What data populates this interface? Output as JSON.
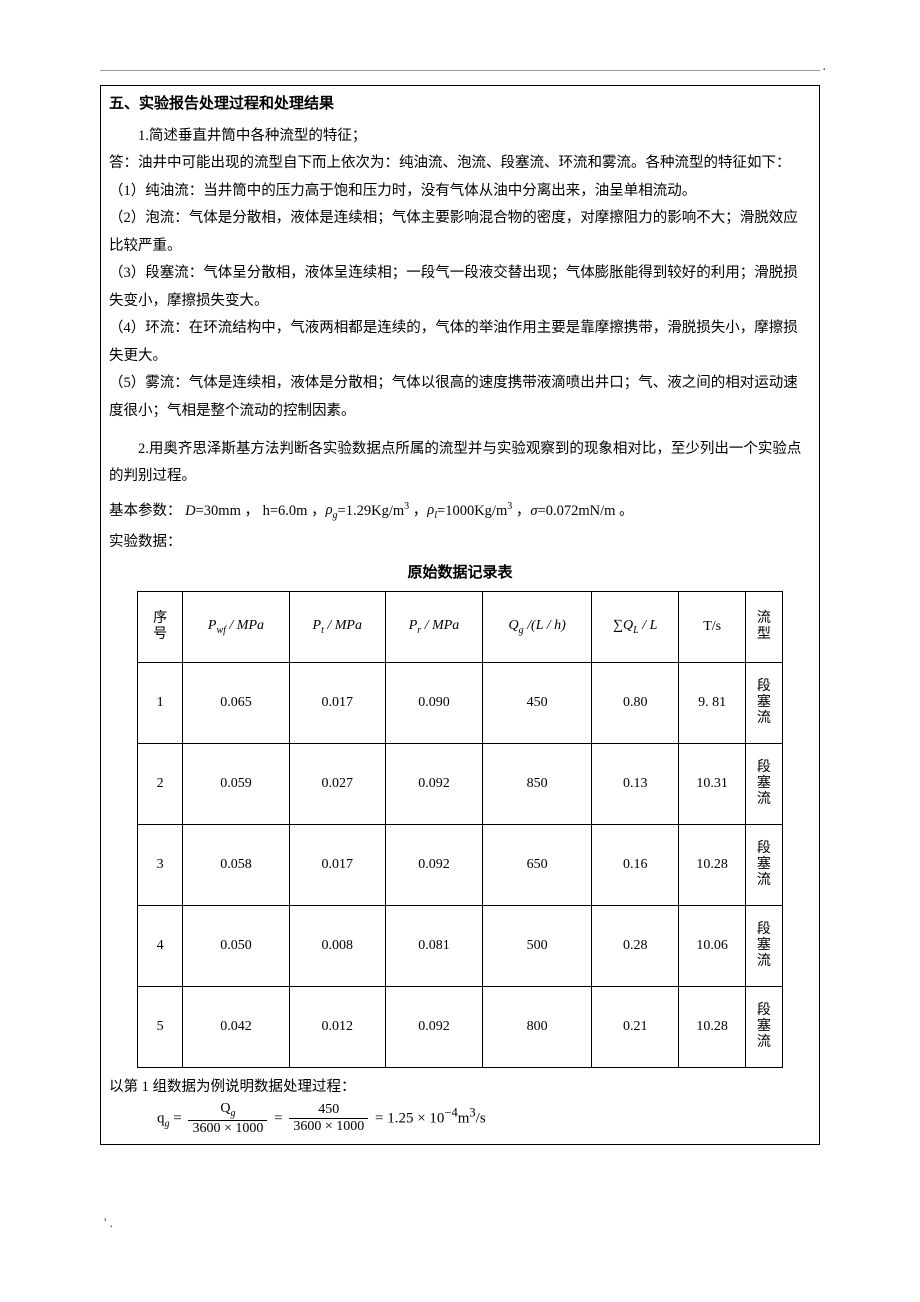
{
  "section_title": "五、实验报告处理过程和处理结果",
  "q1": "1.简述垂直井筒中各种流型的特征；",
  "answer_intro": "答：油井中可能出现的流型自下而上依次为：纯油流、泡流、段塞流、环流和雾流。各种流型的特征如下：",
  "items": [
    "（1）纯油流：当井筒中的压力高于饱和压力时，没有气体从油中分离出来，油呈单相流动。",
    "（2）泡流：气体是分散相，液体是连续相；气体主要影响混合物的密度，对摩擦阻力的影响不大；滑脱效应比较严重。",
    "（3）段塞流：气体呈分散相，液体呈连续相；一段气一段液交替出现；气体膨胀能得到较好的利用；滑脱损失变小，摩擦损失变大。",
    "（4）环流：在环流结构中，气液两相都是连续的，气体的举油作用主要是靠摩擦携带，滑脱损失小，摩擦损失更大。",
    "（5）雾流：气体是连续相，液体是分散相；气体以很高的速度携带液滴喷出井口；气、液之间的相对运动速度很小；气相是整个流动的控制因素。"
  ],
  "q2": "2.用奥齐思泽斯基方法判断各实验数据点所属的流型并与实验观察到的现象相对比，至少列出一个实验点的判别过程。",
  "params_label": "基本参数：",
  "params": {
    "D": "=30",
    "D_unit": "mm",
    "h": "， h=6.0",
    "h_unit": "m",
    "rho_g": "=1.29",
    "rho_g_unit": "Kg/m",
    "rho_l": "=1000",
    "rho_l_unit": "Kg/m",
    "sigma": "=0.072",
    "sigma_unit": "mN/m"
  },
  "exp_label": "实验数据：",
  "table_caption": "原始数据记录表",
  "columns": {
    "seq": "序\n号",
    "pwf": "P",
    "pwf_sub": "wf",
    "pt": "P",
    "pt_sub": "t",
    "pr": "P",
    "pr_sub": "r",
    "mpa": " / MPa",
    "qg": "Q",
    "qg_sub": "g",
    "qg_unit": " /(L / h)",
    "sumq": "∑Q",
    "sumq_sub": "L",
    "sumq_unit": " / L",
    "ts": "T/s",
    "flow": "流\n型"
  },
  "rows": [
    {
      "seq": "1",
      "pwf": "0.065",
      "pt": "0.017",
      "pr": "0.090",
      "qg": "450",
      "sumq": "0.80",
      "ts": "9. 81",
      "flow": "段\n塞\n流"
    },
    {
      "seq": "2",
      "pwf": "0.059",
      "pt": "0.027",
      "pr": "0.092",
      "qg": "850",
      "sumq": "0.13",
      "ts": "10.31",
      "flow": "段\n塞\n流"
    },
    {
      "seq": "3",
      "pwf": "0.058",
      "pt": "0.017",
      "pr": "0.092",
      "qg": "650",
      "sumq": "0.16",
      "ts": "10.28",
      "flow": "段\n塞\n流"
    },
    {
      "seq": "4",
      "pwf": "0.050",
      "pt": "0.008",
      "pr": "0.081",
      "qg": "500",
      "sumq": "0.28",
      "ts": "10.06",
      "flow": "段\n塞\n流"
    },
    {
      "seq": "5",
      "pwf": "0.042",
      "pt": "0.012",
      "pr": "0.092",
      "qg": "800",
      "sumq": "0.21",
      "ts": "10.28",
      "flow": "段\n塞\n流"
    }
  ],
  "calc_intro": "以第 1 组数据为例说明数据处理过程：",
  "eq": {
    "lhs": "q",
    "lhs_sub": "g",
    "eq1": " = ",
    "num1": "Q",
    "num1_sub": "g",
    "den1": "3600 × 1000",
    "eq2": " = ",
    "num2": "450",
    "den2": "3600 × 1000",
    "eq3": " = 1.25 × 10",
    "exp": "−4",
    "tail": "m",
    "tail_sup": "3",
    "tail2": "/s"
  },
  "footer": "' ."
}
